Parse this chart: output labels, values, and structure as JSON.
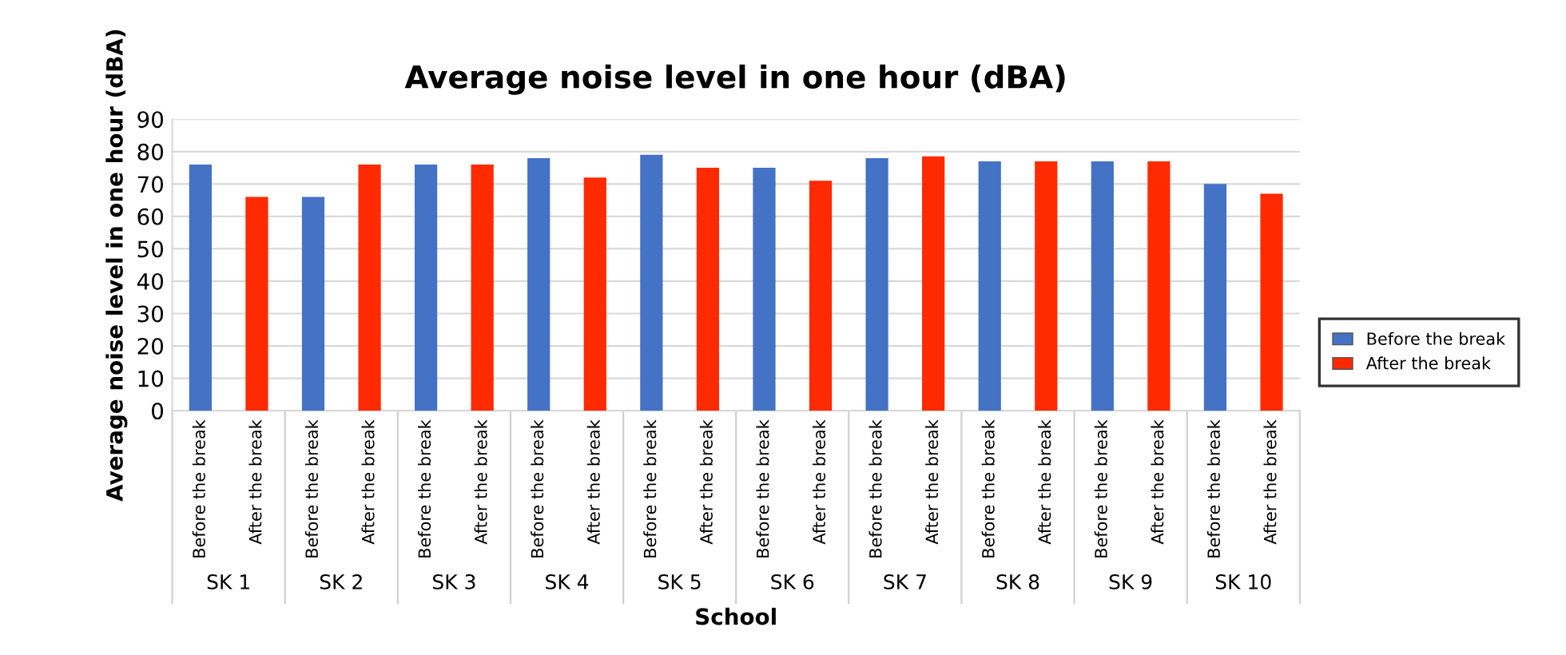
{
  "chart_data": {
    "type": "bar",
    "title": "Average noise level in one hour (dBA)",
    "xlabel": "School",
    "ylabel": "Average noise level in one hour (dBA)",
    "categories": [
      "Before the break",
      "After the break",
      "Before the break",
      "After the break",
      "Before the break",
      "After the break",
      "Before the break",
      "After the break",
      "Before the break",
      "After the break",
      "Before the break",
      "After the break",
      "Before the break",
      "After the break",
      "Before the break",
      "After the break",
      "Before the break",
      "After the break",
      "Before the break",
      "After the break"
    ],
    "series": [
      {
        "name": "Before the break",
        "color": "#4472c4",
        "values": [
          76,
          null,
          66,
          null,
          76,
          null,
          78,
          null,
          79,
          null,
          75,
          null,
          78,
          null,
          77,
          null,
          77,
          null,
          70,
          null
        ]
      },
      {
        "name": "After the break",
        "color": "#ff2a00",
        "values": [
          null,
          66,
          null,
          76,
          null,
          76,
          null,
          72,
          null,
          75,
          null,
          71,
          null,
          78.5,
          null,
          77,
          null,
          77,
          null,
          67
        ]
      }
    ],
    "annotations": [
      "SK 1",
      "SK 2",
      "SK 3",
      "SK 4",
      "SK 5",
      "SK 6",
      "SK 7",
      "SK 8",
      "SK 9",
      "SK 10"
    ],
    "ylim": [
      0,
      90
    ],
    "yticks": [
      0,
      10,
      20,
      30,
      40,
      50,
      60,
      70,
      80,
      90
    ],
    "grid": "y",
    "legend": "right"
  }
}
